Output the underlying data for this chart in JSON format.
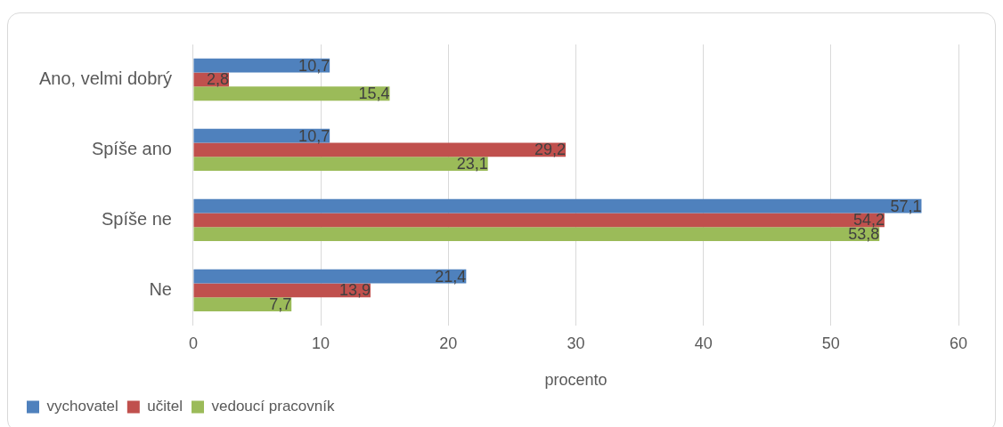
{
  "chart_data": {
    "type": "bar",
    "orientation": "horizontal",
    "xlabel": "procento",
    "categories": [
      "Ano, velmi dobrý",
      "Spíše ano",
      "Spíše ne",
      "Ne"
    ],
    "series": [
      {
        "name": "vychovatel",
        "color": "#4f81bd",
        "values": [
          10.7,
          10.7,
          57.1,
          21.4
        ],
        "value_labels": [
          "10,7",
          "10,7",
          "57,1",
          "21,4"
        ]
      },
      {
        "name": "učitel",
        "color": "#c0504d",
        "values": [
          2.8,
          29.2,
          54.2,
          13.9
        ],
        "value_labels": [
          "2,8",
          "29,2",
          "54,2",
          "13,9"
        ]
      },
      {
        "name": "vedoucí pracovník",
        "color": "#9bbb59",
        "values": [
          15.4,
          23.1,
          53.8,
          7.7
        ],
        "value_labels": [
          "15,4",
          "23,1",
          "53,8",
          "7,7"
        ]
      }
    ],
    "xlim": [
      0,
      60
    ],
    "xticks": [
      0,
      10,
      20,
      30,
      40,
      50,
      60
    ],
    "grid": "x",
    "legend": "bottom left"
  }
}
